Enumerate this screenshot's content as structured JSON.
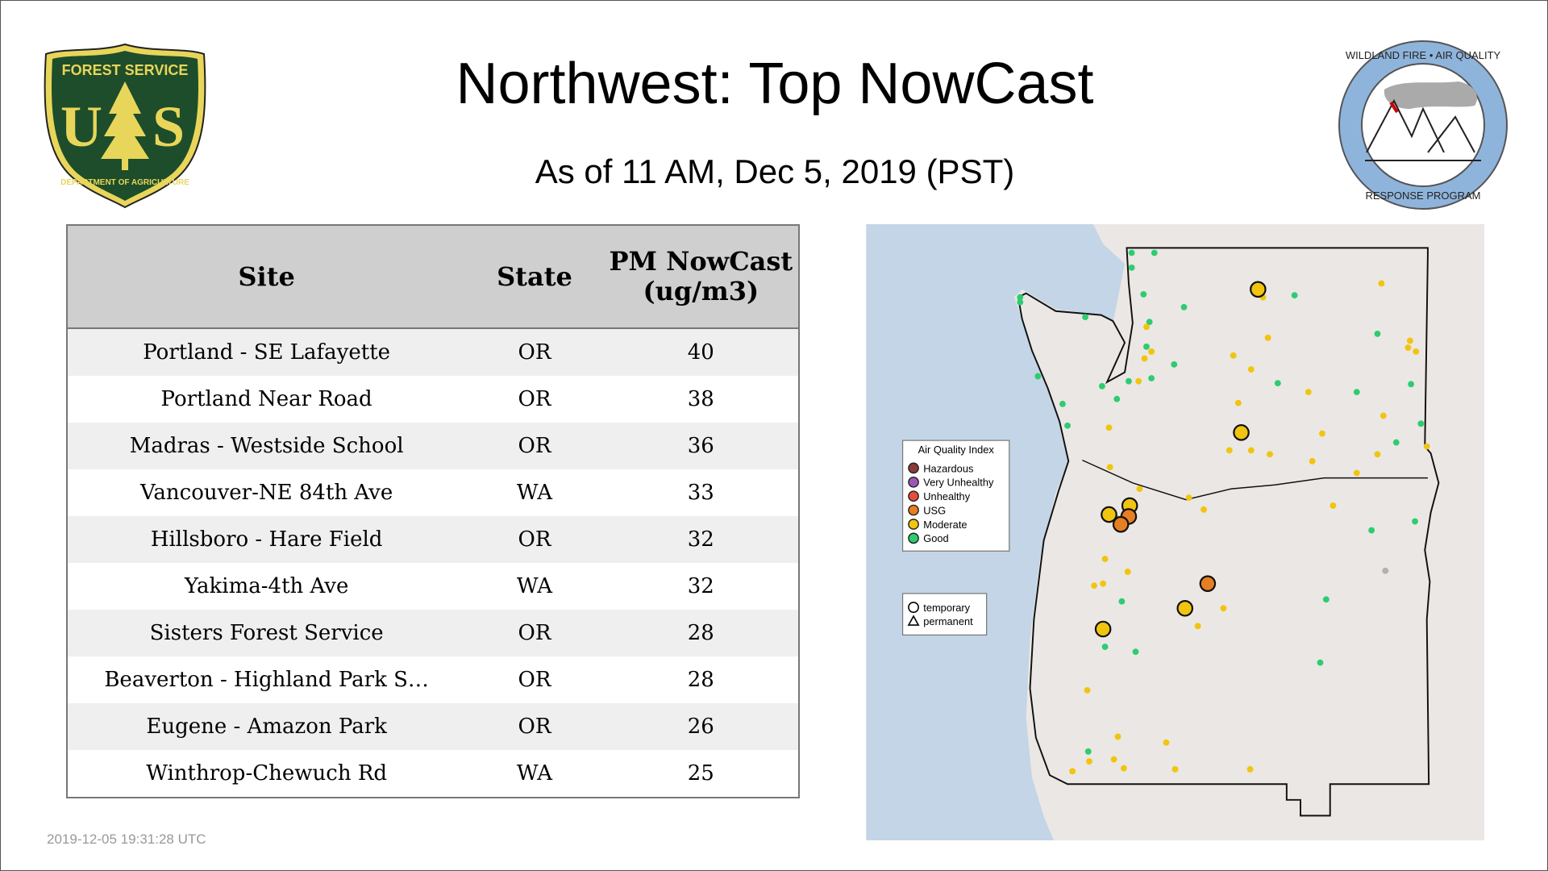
{
  "header": {
    "title": "Northwest: Top NowCast",
    "subtitle": "As of 11 AM, Dec  5, 2019 (PST)"
  },
  "logos": {
    "left": {
      "top_text": "FOREST SERVICE",
      "letters": "U S",
      "bottom_text": "DEPARTMENT OF AGRICULTURE"
    },
    "right": {
      "top_text": "WILDLAND FIRE • AIR QUALITY",
      "bottom_text": "RESPONSE PROGRAM"
    }
  },
  "table": {
    "columns": [
      "Site",
      "State",
      "PM NowCast (ug/m3)"
    ],
    "rows": [
      {
        "site": "Portland - SE Lafayette",
        "state": "OR",
        "pm": "40"
      },
      {
        "site": "Portland Near Road",
        "state": "OR",
        "pm": "38"
      },
      {
        "site": "Madras - Westside School",
        "state": "OR",
        "pm": "36"
      },
      {
        "site": "Vancouver-NE 84th Ave",
        "state": "WA",
        "pm": "33"
      },
      {
        "site": "Hillsboro - Hare Field",
        "state": "OR",
        "pm": "32"
      },
      {
        "site": "Yakima-4th Ave",
        "state": "WA",
        "pm": "32"
      },
      {
        "site": "Sisters Forest Service",
        "state": "OR",
        "pm": "28"
      },
      {
        "site": "Beaverton - Highland Park S…",
        "state": "OR",
        "pm": "28"
      },
      {
        "site": "Eugene - Amazon Park",
        "state": "OR",
        "pm": "26"
      },
      {
        "site": "Winthrop-Chewuch Rd",
        "state": "WA",
        "pm": "25"
      }
    ]
  },
  "map": {
    "legend": {
      "title": "Air Quality Index",
      "items": [
        {
          "label": "Hazardous",
          "color": "#8b3a3a"
        },
        {
          "label": "Very Unhealthy",
          "color": "#9b59b6"
        },
        {
          "label": "Unhealthy",
          "color": "#e74c3c"
        },
        {
          "label": "USG",
          "color": "#e67e22"
        },
        {
          "label": "Moderate",
          "color": "#f1c40f"
        },
        {
          "label": "Good",
          "color": "#2ecc71"
        }
      ]
    },
    "shape_legend": {
      "temporary": "temporary",
      "permanent": "permanent"
    },
    "colors": {
      "water": "#c3d5e6",
      "land": "#eae6e3",
      "no_data": "#b0b0b0"
    }
  },
  "timestamp": "2019-12-05 19:31:28 UTC"
}
